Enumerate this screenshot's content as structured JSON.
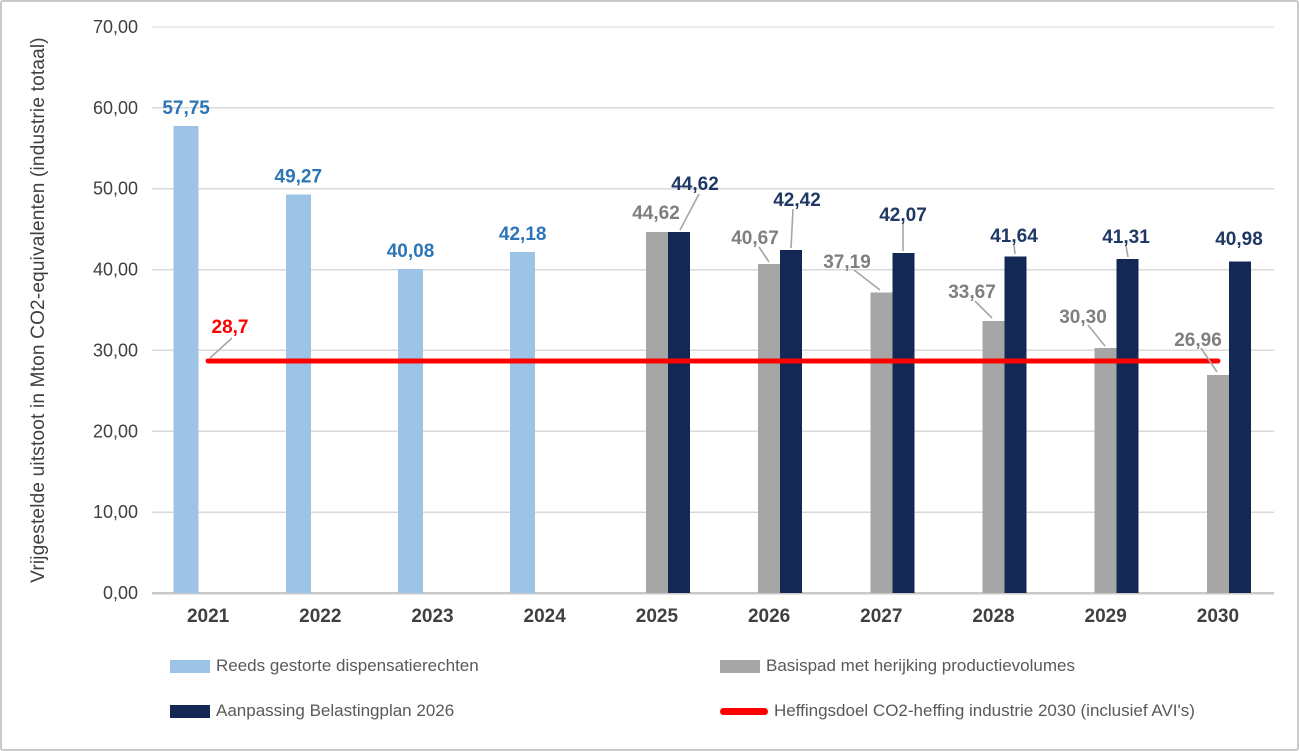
{
  "chart_data": {
    "type": "bar",
    "title": "",
    "xlabel": "",
    "ylabel": "Vrijgestelde uitstoot in Mton CO2-equivalenten (industrie totaal)",
    "ylim": [
      0,
      70
    ],
    "ytick_step": 10,
    "ytick_labels": [
      "0,00",
      "10,00",
      "20,00",
      "30,00",
      "40,00",
      "50,00",
      "60,00",
      "70,00"
    ],
    "grid": true,
    "legend_position": "bottom",
    "categories": [
      "2021",
      "2022",
      "2023",
      "2024",
      "2025",
      "2026",
      "2027",
      "2028",
      "2029",
      "2030"
    ],
    "series": [
      {
        "name": "Reeds gestorte dispensatierechten",
        "color": "#9DC3E6",
        "label_color": "#2E75B6",
        "values": [
          57.75,
          49.27,
          40.08,
          42.18,
          null,
          null,
          null,
          null,
          null,
          null
        ],
        "labels": [
          "57,75",
          "49,27",
          "40,08",
          "42,18",
          null,
          null,
          null,
          null,
          null,
          null
        ]
      },
      {
        "name": "Basispad met herijking productievolumes",
        "color": "#A6A6A6",
        "label_color": "#7F7F7F",
        "values": [
          null,
          null,
          null,
          null,
          44.62,
          40.67,
          37.19,
          33.67,
          30.3,
          26.96
        ],
        "labels": [
          null,
          null,
          null,
          null,
          "44,62",
          "40,67",
          "37,19",
          "33,67",
          "30,30",
          "26,96"
        ]
      },
      {
        "name": "Aanpassing Belastingplan 2026",
        "color": "#142855",
        "label_color": "#1F3864",
        "values": [
          null,
          null,
          null,
          null,
          44.62,
          42.42,
          42.07,
          41.64,
          41.31,
          40.98
        ],
        "labels": [
          null,
          null,
          null,
          null,
          "44,62",
          "42,42",
          "42,07",
          "41,64",
          "41,31",
          "40,98"
        ]
      }
    ],
    "ref_line": {
      "name": "Heffingsdoel CO2-heffing industrie 2030 (inclusief AVI's)",
      "value": 28.7,
      "label": "28,7",
      "color": "#FF0000"
    },
    "legend": [
      {
        "label": "Reeds gestorte dispensatierechten",
        "swatch": "bar",
        "color": "#9DC3E6"
      },
      {
        "label": "Basispad met herijking productievolumes",
        "swatch": "bar",
        "color": "#A6A6A6"
      },
      {
        "label": "Aanpassing Belastingplan 2026",
        "swatch": "bar",
        "color": "#142855"
      },
      {
        "label": "Heffingsdoel CO2-heffing industrie 2030 (inclusief AVI's)",
        "swatch": "line",
        "color": "#FF0000"
      }
    ],
    "colors": {
      "axis_text": "#404040",
      "gridline": "#D9D9D9",
      "axis_line": "#C9C9C9",
      "leader_line": "#A6A6A6",
      "legend_text": "#595959"
    }
  }
}
